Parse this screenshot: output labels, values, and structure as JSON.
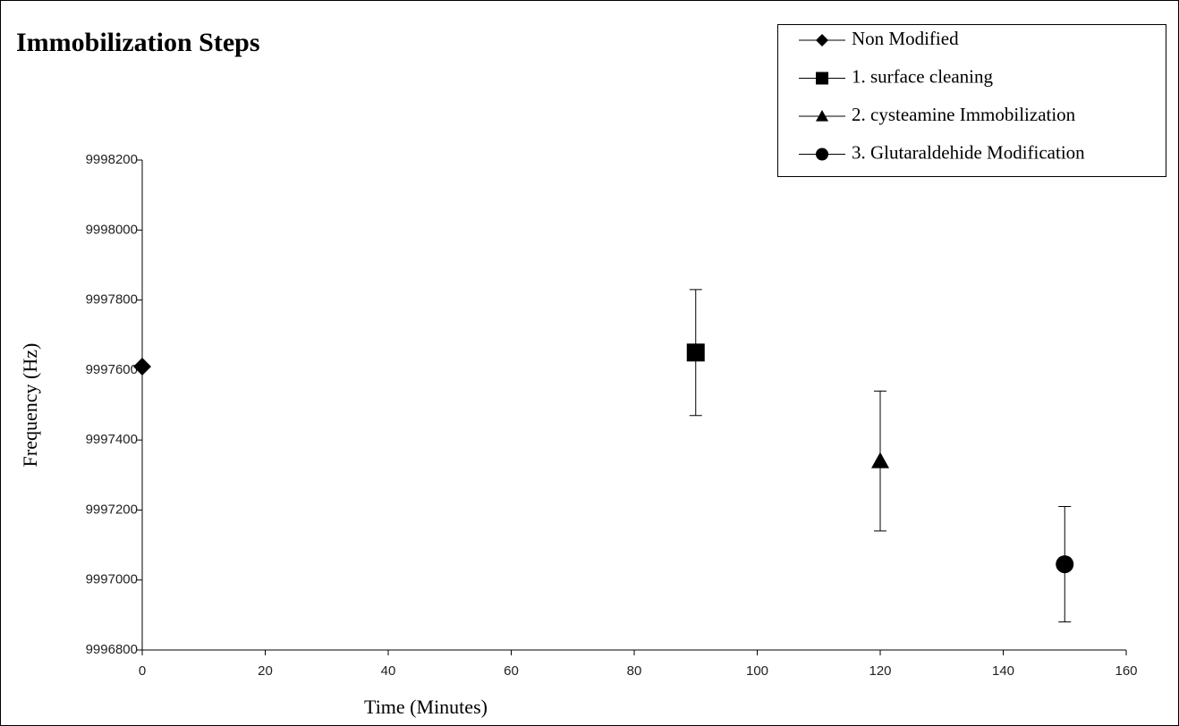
{
  "chart_data": {
    "type": "scatter",
    "title": "Immobilization Steps",
    "xlabel": "Time (Minutes)",
    "ylabel": "Frequency (Hz)",
    "xlim": [
      0,
      160
    ],
    "xticks": [
      0,
      20,
      40,
      60,
      80,
      100,
      120,
      140,
      160
    ],
    "ylim": [
      9996800,
      9998200
    ],
    "yticks": [
      9996800,
      9997000,
      9997200,
      9997400,
      9997600,
      9997800,
      9998000,
      9998200
    ],
    "legend": "top-right",
    "series": [
      {
        "name": "Non Modified",
        "color": "#000000",
        "marker": "diamond",
        "x": [
          0
        ],
        "values": [
          9997610
        ]
      },
      {
        "name": "1. surface cleaning",
        "color": "#000000",
        "marker": "square",
        "x": [
          90
        ],
        "values": [
          9997650
        ],
        "errors": [
          180
        ]
      },
      {
        "name": "2. cysteamine Immobilization",
        "color": "#000000",
        "marker": "triangle",
        "x": [
          120
        ],
        "values": [
          9997340
        ],
        "errors": [
          200
        ]
      },
      {
        "name": "3. Glutaraldehide Modification",
        "color": "#000000",
        "marker": "circle",
        "x": [
          150
        ],
        "values": [
          9997045
        ],
        "errors": [
          165
        ]
      }
    ]
  }
}
